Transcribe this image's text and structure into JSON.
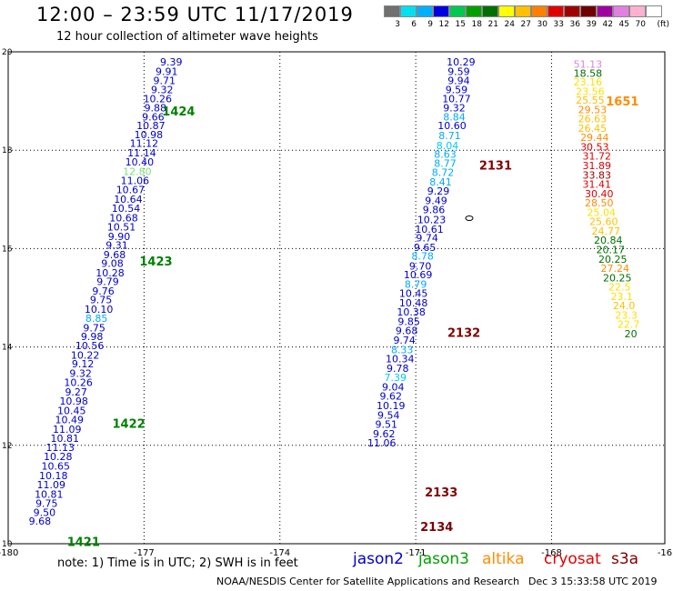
{
  "header": {
    "title": "12:00 – 23:59 UTC 11/17/2019",
    "subtitle": "12 hour collection of altimeter wave heights"
  },
  "legend_scale": {
    "unit": "(ft)",
    "labels": [
      "3",
      "6",
      "9",
      "12",
      "15",
      "18",
      "21",
      "24",
      "27",
      "30",
      "33",
      "36",
      "39",
      "42",
      "45",
      "70"
    ],
    "colors": [
      "#707070",
      "#00e0f0",
      "#00b0f8",
      "#0000e0",
      "#00c850",
      "#00a000",
      "#007000",
      "#ffff00",
      "#ffc000",
      "#ff8000",
      "#e00000",
      "#a00000",
      "#700000",
      "#a000a0",
      "#e080e0",
      "#ffb0d0",
      "#ffffff"
    ]
  },
  "footer": {
    "note": "note:  1) Time is in UTC; 2) SWH is in feet",
    "satellites": [
      {
        "name": "jason2",
        "color": "#0000cc"
      },
      {
        "name": "jason3",
        "color": "#00a000"
      },
      {
        "name": "altika",
        "color": "#ff8c00"
      },
      {
        "name": "cryosat",
        "color": "#e00000"
      },
      {
        "name": "s3a",
        "color": "#800000"
      }
    ],
    "credit": "NOAA/NESDIS Center for Satellite Applications and Research",
    "timestamp": "Dec  3 15:33:58 UTC 2019"
  },
  "map": {
    "x_axis_labels": [
      "-180",
      "-177",
      "-174",
      "-171",
      "-168",
      "-16"
    ],
    "y_axis_labels": [
      "20",
      "18",
      "16",
      "14",
      "12",
      "10"
    ],
    "pass_labels": [
      {
        "text": "1424",
        "lon": -176.6,
        "lat": 18.8,
        "color": "#008000"
      },
      {
        "text": "1423",
        "lon": -177.1,
        "lat": 15.75,
        "color": "#008000"
      },
      {
        "text": "1422",
        "lon": -177.7,
        "lat": 12.45,
        "color": "#008000"
      },
      {
        "text": "1421",
        "lon": -178.7,
        "lat": 10.05,
        "color": "#008000"
      },
      {
        "text": "2131",
        "lon": -169.6,
        "lat": 17.7,
        "color": "#800000"
      },
      {
        "text": "2132",
        "lon": -170.3,
        "lat": 14.3,
        "color": "#800000"
      },
      {
        "text": "2133",
        "lon": -170.8,
        "lat": 11.05,
        "color": "#800000"
      },
      {
        "text": "2134",
        "lon": -170.9,
        "lat": 10.35,
        "color": "#800000"
      },
      {
        "text": "1651",
        "lon": -166.8,
        "lat": 19.0,
        "color": "#ff8c00"
      }
    ],
    "tracks": [
      {
        "name": "track-1424",
        "points": [
          {
            "v": "9.39",
            "lon": -176.4,
            "lat": 19.8,
            "color": "#0000cc"
          },
          {
            "v": "9.91",
            "lon": -176.5,
            "lat": 19.6,
            "color": "#0000cc"
          },
          {
            "v": "9.71",
            "lon": -176.55,
            "lat": 19.42,
            "color": "#0000cc"
          },
          {
            "v": "9.32",
            "lon": -176.6,
            "lat": 19.23,
            "color": "#0000cc"
          },
          {
            "v": "10.26",
            "lon": -176.7,
            "lat": 19.05,
            "color": "#0000cc"
          },
          {
            "v": "9.88",
            "lon": -176.75,
            "lat": 18.86,
            "color": "#0000cc"
          },
          {
            "v": "9.66",
            "lon": -176.8,
            "lat": 18.68,
            "color": "#0000cc"
          },
          {
            "v": "10.87",
            "lon": -176.85,
            "lat": 18.5,
            "color": "#0000cc"
          },
          {
            "v": "10.98",
            "lon": -176.9,
            "lat": 18.32,
            "color": "#0000cc"
          },
          {
            "v": "11.12",
            "lon": -177.0,
            "lat": 18.14,
            "color": "#0000cc"
          },
          {
            "v": "11.14",
            "lon": -177.05,
            "lat": 17.95,
            "color": "#0000cc"
          },
          {
            "v": "10.40",
            "lon": -177.1,
            "lat": 17.76,
            "color": "#0000cc"
          },
          {
            "v": "12.80",
            "lon": -177.15,
            "lat": 17.57,
            "color": "#7ce07c"
          },
          {
            "v": "11.06",
            "lon": -177.2,
            "lat": 17.38,
            "color": "#0000cc"
          },
          {
            "v": "10.67",
            "lon": -177.3,
            "lat": 17.2,
            "color": "#0000cc"
          },
          {
            "v": "10.64",
            "lon": -177.35,
            "lat": 17.01,
            "color": "#0000cc"
          },
          {
            "v": "10.54",
            "lon": -177.4,
            "lat": 16.82,
            "color": "#0000cc"
          },
          {
            "v": "10.68",
            "lon": -177.45,
            "lat": 16.63,
            "color": "#0000cc"
          },
          {
            "v": "10.51",
            "lon": -177.5,
            "lat": 16.44,
            "color": "#0000cc"
          },
          {
            "v": "9.90",
            "lon": -177.55,
            "lat": 16.25,
            "color": "#0000cc"
          },
          {
            "v": "9.31",
            "lon": -177.6,
            "lat": 16.07,
            "color": "#0000cc"
          },
          {
            "v": "9.68",
            "lon": -177.65,
            "lat": 15.88,
            "color": "#0000cc"
          },
          {
            "v": "9.08",
            "lon": -177.7,
            "lat": 15.7,
            "color": "#0000cc"
          }
        ]
      },
      {
        "name": "track-1423",
        "points": [
          {
            "v": "10.28",
            "lon": -177.75,
            "lat": 15.51,
            "color": "#0000cc"
          },
          {
            "v": "9.79",
            "lon": -177.8,
            "lat": 15.33,
            "color": "#0000cc"
          },
          {
            "v": "9.76",
            "lon": -177.9,
            "lat": 15.14,
            "color": "#0000cc"
          },
          {
            "v": "9.75",
            "lon": -177.95,
            "lat": 14.96,
            "color": "#0000cc"
          },
          {
            "v": "10.10",
            "lon": -178.0,
            "lat": 14.77,
            "color": "#0000cc"
          },
          {
            "v": "8.85",
            "lon": -178.05,
            "lat": 14.58,
            "color": "#00aaff"
          },
          {
            "v": "9.75",
            "lon": -178.1,
            "lat": 14.39,
            "color": "#0000cc"
          },
          {
            "v": "9.98",
            "lon": -178.15,
            "lat": 14.21,
            "color": "#0000cc"
          },
          {
            "v": "10.56",
            "lon": -178.2,
            "lat": 14.03,
            "color": "#0000cc"
          },
          {
            "v": "10.22",
            "lon": -178.3,
            "lat": 13.84,
            "color": "#0000cc"
          },
          {
            "v": "9.12",
            "lon": -178.35,
            "lat": 13.66,
            "color": "#0000cc"
          },
          {
            "v": "9.32",
            "lon": -178.4,
            "lat": 13.47,
            "color": "#0000cc"
          },
          {
            "v": "10.26",
            "lon": -178.45,
            "lat": 13.28,
            "color": "#0000cc"
          },
          {
            "v": "9.27",
            "lon": -178.5,
            "lat": 13.09,
            "color": "#0000cc"
          },
          {
            "v": "10.98",
            "lon": -178.55,
            "lat": 12.9,
            "color": "#0000cc"
          },
          {
            "v": "10.45",
            "lon": -178.6,
            "lat": 12.71,
            "color": "#0000cc"
          },
          {
            "v": "10.49",
            "lon": -178.65,
            "lat": 12.52,
            "color": "#0000cc"
          },
          {
            "v": "11.09",
            "lon": -178.7,
            "lat": 12.33,
            "color": "#0000cc"
          }
        ]
      },
      {
        "name": "track-1422",
        "points": [
          {
            "v": "10.81",
            "lon": -178.75,
            "lat": 12.14,
            "color": "#0000cc"
          },
          {
            "v": "11.13",
            "lon": -178.85,
            "lat": 11.96,
            "color": "#0000cc"
          },
          {
            "v": "10.28",
            "lon": -178.9,
            "lat": 11.77,
            "color": "#0000cc"
          },
          {
            "v": "10.65",
            "lon": -178.95,
            "lat": 11.58,
            "color": "#0000cc"
          },
          {
            "v": "10.18",
            "lon": -179.0,
            "lat": 11.39,
            "color": "#0000cc"
          },
          {
            "v": "11.09",
            "lon": -179.05,
            "lat": 11.2,
            "color": "#0000cc"
          },
          {
            "v": "10.81",
            "lon": -179.1,
            "lat": 11.01,
            "color": "#0000cc"
          },
          {
            "v": "9.75",
            "lon": -179.15,
            "lat": 10.82,
            "color": "#0000cc"
          },
          {
            "v": "9.50",
            "lon": -179.2,
            "lat": 10.64,
            "color": "#0000cc"
          },
          {
            "v": "9.68",
            "lon": -179.3,
            "lat": 10.46,
            "color": "#0000cc"
          }
        ]
      },
      {
        "name": "track-2131",
        "points": [
          {
            "v": "10.29",
            "lon": -170.0,
            "lat": 19.8,
            "color": "#0000cc"
          },
          {
            "v": "9.59",
            "lon": -170.05,
            "lat": 19.6,
            "color": "#0000cc"
          },
          {
            "v": "9.94",
            "lon": -170.05,
            "lat": 19.42,
            "color": "#0000cc"
          },
          {
            "v": "9.59",
            "lon": -170.1,
            "lat": 19.23,
            "color": "#0000cc"
          },
          {
            "v": "10.77",
            "lon": -170.1,
            "lat": 19.05,
            "color": "#0000cc"
          },
          {
            "v": "9.32",
            "lon": -170.15,
            "lat": 18.86,
            "color": "#0000cc"
          },
          {
            "v": "8.84",
            "lon": -170.15,
            "lat": 18.68,
            "color": "#00aaff"
          },
          {
            "v": "10.60",
            "lon": -170.2,
            "lat": 18.5,
            "color": "#0000cc"
          },
          {
            "v": "8.71",
            "lon": -170.25,
            "lat": 18.3,
            "color": "#00aaff"
          },
          {
            "v": "8.04",
            "lon": -170.3,
            "lat": 18.1,
            "color": "#00ccee"
          },
          {
            "v": "8.63",
            "lon": -170.35,
            "lat": 17.92,
            "color": "#00aaff"
          },
          {
            "v": "8.77",
            "lon": -170.35,
            "lat": 17.74,
            "color": "#00aaff"
          },
          {
            "v": "8.72",
            "lon": -170.4,
            "lat": 17.55,
            "color": "#00aaff"
          },
          {
            "v": "8.41",
            "lon": -170.45,
            "lat": 17.36,
            "color": "#00aaff"
          },
          {
            "v": "9.29",
            "lon": -170.5,
            "lat": 17.17,
            "color": "#0000cc"
          },
          {
            "v": "9.49",
            "lon": -170.55,
            "lat": 16.98,
            "color": "#0000cc"
          },
          {
            "v": "9.86",
            "lon": -170.6,
            "lat": 16.79,
            "color": "#0000cc"
          },
          {
            "v": "10.23",
            "lon": -170.65,
            "lat": 16.59,
            "color": "#0000cc"
          },
          {
            "v": "10.61",
            "lon": -170.7,
            "lat": 16.4,
            "color": "#0000cc"
          },
          {
            "v": "9.74",
            "lon": -170.75,
            "lat": 16.22,
            "color": "#0000cc"
          },
          {
            "v": "9.65",
            "lon": -170.8,
            "lat": 16.03,
            "color": "#0000cc"
          },
          {
            "v": "8.78",
            "lon": -170.85,
            "lat": 15.85,
            "color": "#00aaff"
          },
          {
            "v": "9.70",
            "lon": -170.9,
            "lat": 15.65,
            "color": "#0000cc"
          },
          {
            "v": "10.69",
            "lon": -170.95,
            "lat": 15.47,
            "color": "#0000cc"
          },
          {
            "v": "8.79",
            "lon": -171.0,
            "lat": 15.28,
            "color": "#00aaff"
          },
          {
            "v": "10.45",
            "lon": -171.05,
            "lat": 15.09,
            "color": "#0000cc"
          }
        ]
      },
      {
        "name": "track-2132",
        "points": [
          {
            "v": "10.48",
            "lon": -171.05,
            "lat": 14.9,
            "color": "#0000cc"
          },
          {
            "v": "10.38",
            "lon": -171.1,
            "lat": 14.71,
            "color": "#0000cc"
          },
          {
            "v": "9.85",
            "lon": -171.15,
            "lat": 14.52,
            "color": "#0000cc"
          },
          {
            "v": "9.68",
            "lon": -171.2,
            "lat": 14.33,
            "color": "#0000cc"
          },
          {
            "v": "9.74",
            "lon": -171.25,
            "lat": 14.14,
            "color": "#0000cc"
          },
          {
            "v": "8.33",
            "lon": -171.3,
            "lat": 13.95,
            "color": "#00aaff"
          },
          {
            "v": "10.34",
            "lon": -171.35,
            "lat": 13.76,
            "color": "#0000cc"
          },
          {
            "v": "9.78",
            "lon": -171.4,
            "lat": 13.57,
            "color": "#0000cc"
          },
          {
            "v": "7.39",
            "lon": -171.45,
            "lat": 13.38,
            "color": "#00ccee"
          },
          {
            "v": "9.04",
            "lon": -171.5,
            "lat": 13.19,
            "color": "#0000cc"
          },
          {
            "v": "9.62",
            "lon": -171.55,
            "lat": 13.0,
            "color": "#0000cc"
          },
          {
            "v": "10.19",
            "lon": -171.55,
            "lat": 12.81,
            "color": "#0000cc"
          },
          {
            "v": "9.54",
            "lon": -171.6,
            "lat": 12.62,
            "color": "#0000cc"
          },
          {
            "v": "9.51",
            "lon": -171.65,
            "lat": 12.43,
            "color": "#0000cc"
          },
          {
            "v": "9.62",
            "lon": -171.7,
            "lat": 12.24,
            "color": "#0000cc"
          },
          {
            "v": "11.06",
            "lon": -171.75,
            "lat": 12.05,
            "color": "#0000cc"
          }
        ]
      },
      {
        "name": "track-1651",
        "points": [
          {
            "v": "51.13",
            "lon": -167.2,
            "lat": 19.75,
            "color": "#e080e0"
          },
          {
            "v": "18.58",
            "lon": -167.2,
            "lat": 19.57,
            "color": "#007000"
          },
          {
            "v": "23.16",
            "lon": -167.2,
            "lat": 19.39,
            "color": "#ffe000"
          },
          {
            "v": "23.56",
            "lon": -167.15,
            "lat": 19.2,
            "color": "#ffe000"
          },
          {
            "v": "25.55",
            "lon": -167.15,
            "lat": 19.02,
            "color": "#ffc000"
          },
          {
            "v": "29.53",
            "lon": -167.1,
            "lat": 18.83,
            "color": "#ff8c00"
          },
          {
            "v": "26.63",
            "lon": -167.1,
            "lat": 18.64,
            "color": "#ffc000"
          },
          {
            "v": "26.45",
            "lon": -167.1,
            "lat": 18.45,
            "color": "#ffc000"
          },
          {
            "v": "29.44",
            "lon": -167.05,
            "lat": 18.26,
            "color": "#ff8c00"
          },
          {
            "v": "30.53",
            "lon": -167.05,
            "lat": 18.07,
            "color": "#e00000"
          },
          {
            "v": "31.72",
            "lon": -167.0,
            "lat": 17.88,
            "color": "#e00000"
          },
          {
            "v": "31.89",
            "lon": -167.0,
            "lat": 17.69,
            "color": "#e00000"
          },
          {
            "v": "33.83",
            "lon": -167.0,
            "lat": 17.5,
            "color": "#a00000"
          },
          {
            "v": "31.41",
            "lon": -167.0,
            "lat": 17.31,
            "color": "#e00000"
          },
          {
            "v": "30.40",
            "lon": -166.95,
            "lat": 17.12,
            "color": "#e00000"
          },
          {
            "v": "28.50",
            "lon": -166.95,
            "lat": 16.93,
            "color": "#ff8c00"
          },
          {
            "v": "25.04",
            "lon": -166.9,
            "lat": 16.74,
            "color": "#ffe000"
          },
          {
            "v": "25.60",
            "lon": -166.85,
            "lat": 16.55,
            "color": "#ffc000"
          },
          {
            "v": "24.77",
            "lon": -166.8,
            "lat": 16.36,
            "color": "#ffc000"
          },
          {
            "v": "20.84",
            "lon": -166.75,
            "lat": 16.17,
            "color": "#007000"
          },
          {
            "v": "20.17",
            "lon": -166.7,
            "lat": 15.98,
            "color": "#007000"
          },
          {
            "v": "20.25",
            "lon": -166.65,
            "lat": 15.79,
            "color": "#007000"
          },
          {
            "v": "27.24",
            "lon": -166.6,
            "lat": 15.6,
            "color": "#ff8c00"
          },
          {
            "v": "20.25",
            "lon": -166.55,
            "lat": 15.41,
            "color": "#007000"
          },
          {
            "v": "22.5",
            "lon": -166.5,
            "lat": 15.22,
            "color": "#ffe000"
          },
          {
            "v": "23.1",
            "lon": -166.45,
            "lat": 15.03,
            "color": "#ffe000"
          },
          {
            "v": "24.0",
            "lon": -166.4,
            "lat": 14.84,
            "color": "#ffc000"
          },
          {
            "v": "23.3",
            "lon": -166.35,
            "lat": 14.65,
            "color": "#ffe000"
          },
          {
            "v": "22.7",
            "lon": -166.3,
            "lat": 14.46,
            "color": "#ffe000"
          },
          {
            "v": "20",
            "lon": -166.25,
            "lat": 14.27,
            "color": "#007000"
          }
        ]
      }
    ]
  }
}
